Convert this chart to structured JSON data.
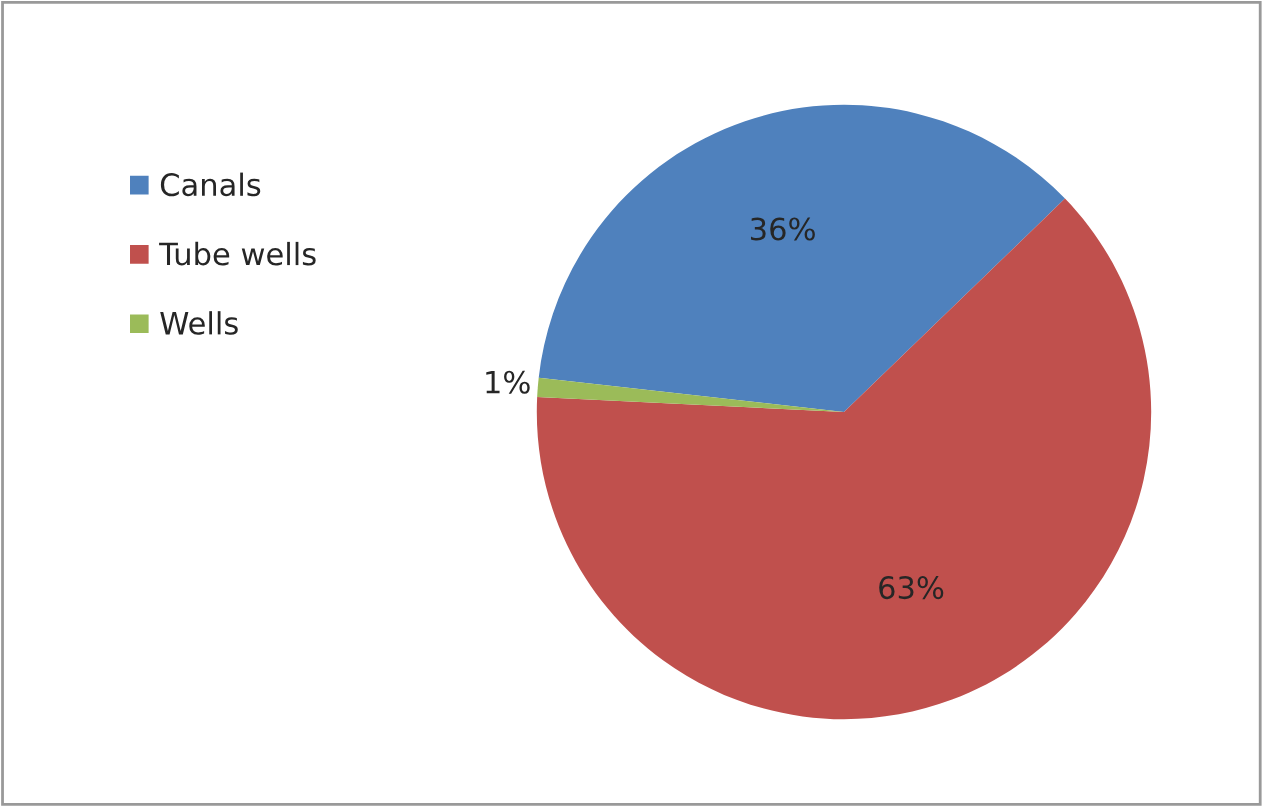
{
  "chart_data": {
    "type": "pie",
    "categories": [
      "Canals",
      "Tube wells",
      "Wells"
    ],
    "values": [
      36,
      63,
      1
    ],
    "colors": [
      "#4f81bd",
      "#c0504d",
      "#9bbb59"
    ],
    "value_labels": [
      "36%",
      "63%",
      "1%"
    ],
    "legend": "left"
  }
}
